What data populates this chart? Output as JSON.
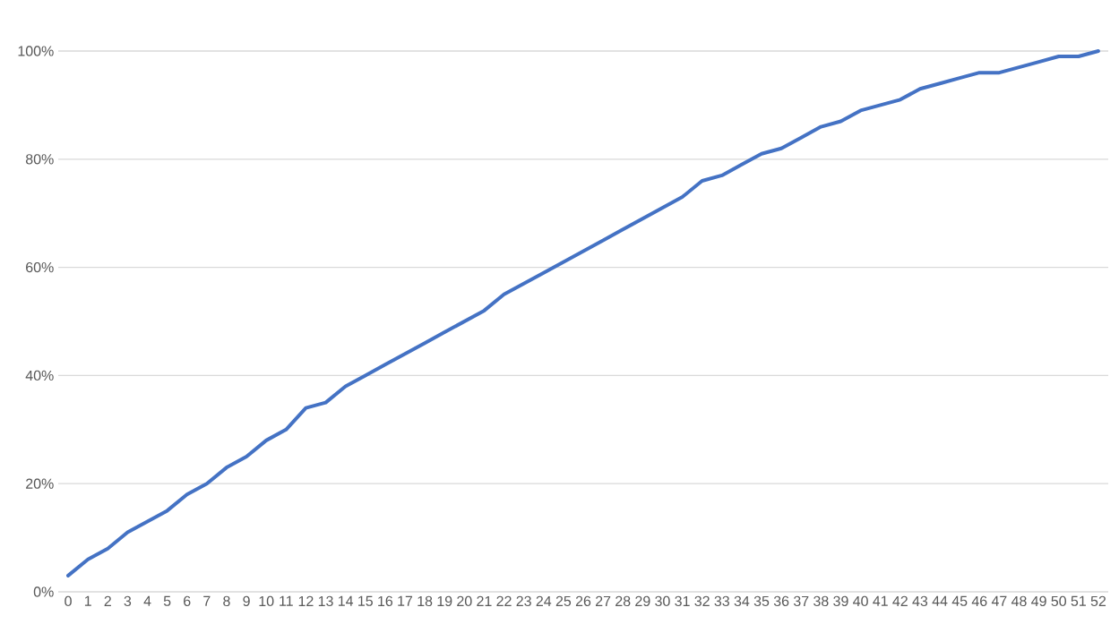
{
  "chart_data": {
    "type": "line",
    "categories": [
      "0",
      "1",
      "2",
      "3",
      "4",
      "5",
      "6",
      "7",
      "8",
      "9",
      "10",
      "11",
      "12",
      "13",
      "14",
      "15",
      "16",
      "17",
      "18",
      "19",
      "20",
      "21",
      "22",
      "23",
      "24",
      "25",
      "26",
      "27",
      "28",
      "29",
      "30",
      "31",
      "32",
      "33",
      "34",
      "35",
      "36",
      "37",
      "38",
      "39",
      "40",
      "41",
      "42",
      "43",
      "44",
      "45",
      "46",
      "47",
      "48",
      "49",
      "50",
      "51",
      "52"
    ],
    "values": [
      3,
      6,
      8,
      11,
      13,
      15,
      18,
      20,
      23,
      25,
      28,
      30,
      34,
      35,
      38,
      40,
      42,
      44,
      46,
      48,
      50,
      52,
      55,
      57,
      59,
      61,
      63,
      65,
      67,
      69,
      71,
      73,
      76,
      77,
      79,
      81,
      82,
      84,
      86,
      87,
      89,
      90,
      91,
      93,
      94,
      95,
      96,
      96,
      97,
      98,
      99,
      99,
      100
    ],
    "color": "#4472c4",
    "ylim": [
      0,
      100
    ],
    "yticks": [
      {
        "value": 0,
        "label": "0%"
      },
      {
        "value": 20,
        "label": "20%"
      },
      {
        "value": 40,
        "label": "40%"
      },
      {
        "value": 60,
        "label": "60%"
      },
      {
        "value": 80,
        "label": "80%"
      },
      {
        "value": 100,
        "label": "100%"
      }
    ],
    "grid": "y"
  }
}
